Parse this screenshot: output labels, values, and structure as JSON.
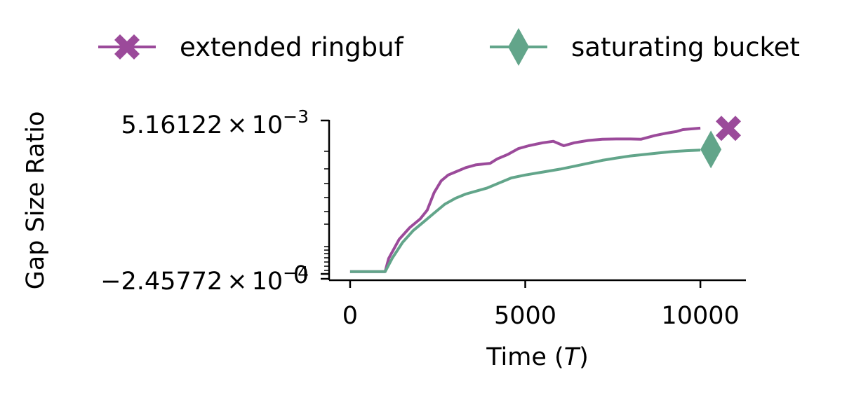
{
  "chart_data": {
    "type": "line",
    "title": "",
    "xlabel": "Time",
    "xlabel_symbol": "T",
    "ylabel": "Gap Size Ratio",
    "xlim": [
      -600,
      11300
    ],
    "ylim": [
      -0.000245772,
      0.00516122
    ],
    "x_ticks": [
      0,
      5000,
      10000
    ],
    "x_tick_labels": [
      "0",
      "5000",
      "10000"
    ],
    "y_tick_labels": {
      "top": {
        "mantissa": "5.16122",
        "base": "10",
        "exponent": "−3"
      },
      "bottom": {
        "mantissa": "−2.45772",
        "base": "10",
        "exponent": "−4"
      },
      "zero": "0"
    },
    "scale": "symlog",
    "grid": false,
    "legend_position": "top",
    "series": [
      {
        "name": "extended ringbuf",
        "color": "#9b4a9a",
        "marker": "X",
        "marker_at": [
          10800,
          0.00489
        ],
        "points": [
          [
            0,
            0
          ],
          [
            1000,
            0
          ],
          [
            1100,
            0.00045
          ],
          [
            1400,
            0.0011
          ],
          [
            1700,
            0.0015
          ],
          [
            2000,
            0.0018
          ],
          [
            2200,
            0.0021
          ],
          [
            2400,
            0.0027
          ],
          [
            2600,
            0.0031
          ],
          [
            2800,
            0.0033
          ],
          [
            3000,
            0.0034
          ],
          [
            3300,
            0.00355
          ],
          [
            3600,
            0.00365
          ],
          [
            4000,
            0.0037
          ],
          [
            4200,
            0.00385
          ],
          [
            4500,
            0.004
          ],
          [
            4800,
            0.0042
          ],
          [
            5100,
            0.0043
          ],
          [
            5500,
            0.0044
          ],
          [
            5800,
            0.00445
          ],
          [
            6100,
            0.0043
          ],
          [
            6400,
            0.0044
          ],
          [
            6800,
            0.00448
          ],
          [
            7200,
            0.00452
          ],
          [
            7600,
            0.00453
          ],
          [
            8000,
            0.00453
          ],
          [
            8300,
            0.00452
          ],
          [
            8700,
            0.00465
          ],
          [
            9000,
            0.00472
          ],
          [
            9300,
            0.00478
          ],
          [
            9500,
            0.00485
          ],
          [
            10000,
            0.0049
          ]
        ]
      },
      {
        "name": "saturating bucket",
        "color": "#62a58a",
        "marker": "d",
        "marker_at": [
          10300,
          0.00417
        ],
        "points": [
          [
            0,
            0
          ],
          [
            1000,
            0
          ],
          [
            1200,
            0.00045
          ],
          [
            1500,
            0.001
          ],
          [
            1800,
            0.0014
          ],
          [
            2100,
            0.0017
          ],
          [
            2400,
            0.002
          ],
          [
            2700,
            0.0023
          ],
          [
            3000,
            0.0025
          ],
          [
            3300,
            0.00265
          ],
          [
            3600,
            0.00275
          ],
          [
            3900,
            0.00285
          ],
          [
            4200,
            0.003
          ],
          [
            4600,
            0.0032
          ],
          [
            5000,
            0.0033
          ],
          [
            5500,
            0.0034
          ],
          [
            6000,
            0.0035
          ],
          [
            6400,
            0.0036
          ],
          [
            6800,
            0.0037
          ],
          [
            7200,
            0.0038
          ],
          [
            7600,
            0.00388
          ],
          [
            8000,
            0.00395
          ],
          [
            8400,
            0.004
          ],
          [
            8800,
            0.00405
          ],
          [
            9200,
            0.0041
          ],
          [
            9600,
            0.00413
          ],
          [
            10000,
            0.00415
          ]
        ]
      }
    ]
  }
}
